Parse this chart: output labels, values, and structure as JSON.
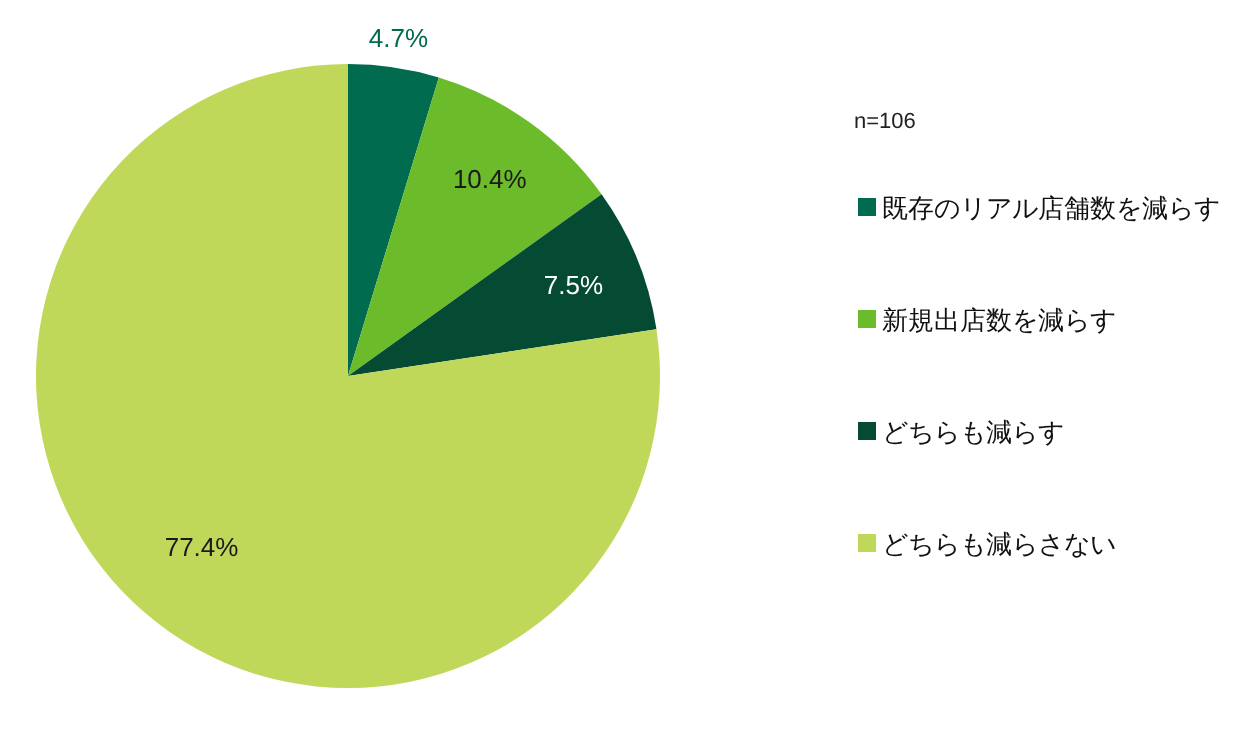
{
  "chart_data": {
    "type": "pie",
    "categories": [
      "既存のリアル店舗数を減らす",
      "新規出店数を減らす",
      "どちらも減らす",
      "どちらも減らさない"
    ],
    "values": [
      4.7,
      10.4,
      7.5,
      77.4
    ],
    "colors": [
      "#006b4e",
      "#6cbb2a",
      "#054a33",
      "#c0d85a"
    ],
    "value_labels": [
      "4.7%",
      "10.4%",
      "7.5%",
      "77.4%"
    ],
    "legend": "right",
    "annotations": [
      "n=106"
    ]
  }
}
